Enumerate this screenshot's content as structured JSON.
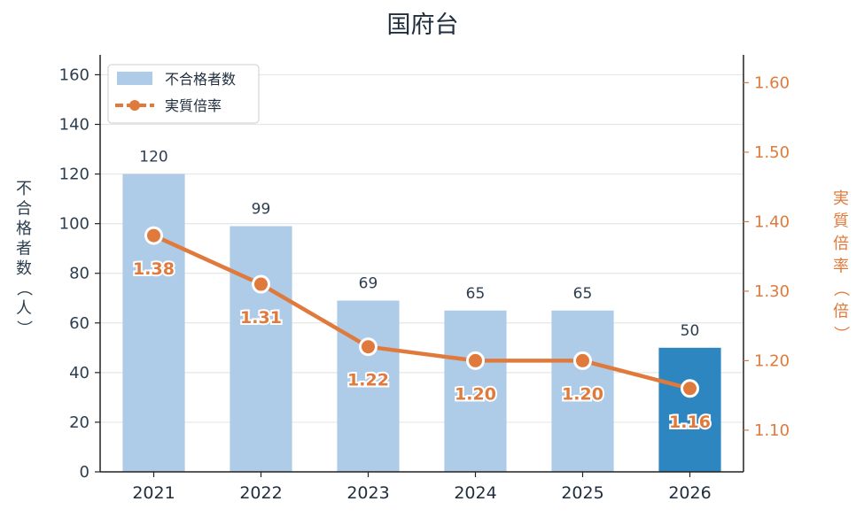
{
  "chart_data": {
    "type": "bar",
    "title": "国府台",
    "categories": [
      "2021",
      "2022",
      "2023",
      "2024",
      "2025",
      "2026"
    ],
    "series": [
      {
        "name": "不合格者数",
        "type": "bar",
        "axis": "left",
        "values": [
          120,
          99,
          69,
          65,
          65,
          50
        ],
        "color": "#aecbe8",
        "highlight_color": "#2e86c1",
        "highlight_index": 5
      },
      {
        "name": "実質倍率",
        "type": "line",
        "axis": "right",
        "values": [
          1.38,
          1.31,
          1.22,
          1.2,
          1.2,
          1.16
        ],
        "labels": [
          "1.38",
          "1.31",
          "1.22",
          "1.20",
          "1.20",
          "1.16"
        ],
        "color": "#e07a3c"
      }
    ],
    "ylabel_left": "不合格者数（人）",
    "ylabel_right": "実質倍率（倍）",
    "ylim_left": [
      0,
      168
    ],
    "yticks_left": [
      0,
      20,
      40,
      60,
      80,
      100,
      120,
      140,
      160
    ],
    "ylim_right": [
      1.04,
      1.64
    ],
    "yticks_right": [
      "1.10",
      "1.20",
      "1.30",
      "1.40",
      "1.50",
      "1.60"
    ],
    "grid": true,
    "legend": "top-left"
  }
}
